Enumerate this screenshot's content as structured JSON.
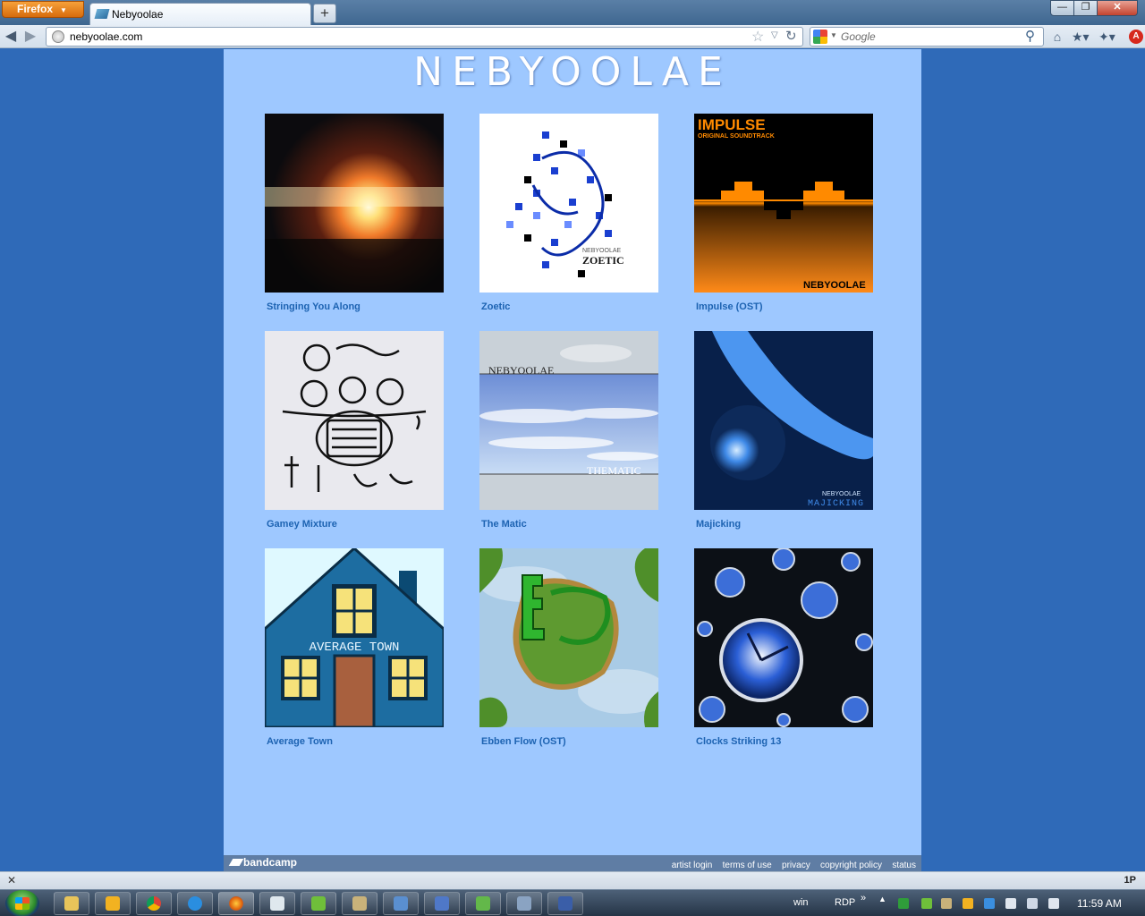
{
  "browser": {
    "app_button": "Firefox",
    "tab_title": "Nebyoolae",
    "url": "nebyoolae.com",
    "search_placeholder": "Google"
  },
  "site": {
    "title": "NEBYOOLAE",
    "albums": [
      {
        "title": "Stringing You Along"
      },
      {
        "title": "Zoetic",
        "cover_text": [
          "NEBYOOLAE",
          "ZOETIC"
        ]
      },
      {
        "title": "Impulse (OST)",
        "cover_text": [
          "IMPULSE",
          "ORIGINAL SOUNDTRACK",
          "NEBYOOLAE"
        ]
      },
      {
        "title": "Gamey Mixture"
      },
      {
        "title": "The Matic",
        "cover_text": [
          "NEBYOOLAE",
          "THEMATIC"
        ]
      },
      {
        "title": "Majicking",
        "cover_text": [
          "NEBYOOLAE",
          "MAJICKING"
        ]
      },
      {
        "title": "Average Town",
        "cover_text": [
          "AVERAGE TOWN"
        ]
      },
      {
        "title": "Ebben Flow (OST)"
      },
      {
        "title": "Clocks Striking 13"
      }
    ],
    "footer": {
      "logo": "bandcamp",
      "links": [
        "artist login",
        "terms of use",
        "privacy",
        "copyright policy",
        "status"
      ]
    }
  },
  "statusbar": {
    "right": "1P"
  },
  "taskbar": {
    "tray_win": "win",
    "tray_rdp": "RDP",
    "clock": "11:59 AM"
  },
  "colors": {
    "page_bg": "#2f6ab8",
    "content_bg": "#9ec8ff",
    "link": "#1d63b2",
    "footer_bg": "#5f7da4"
  }
}
